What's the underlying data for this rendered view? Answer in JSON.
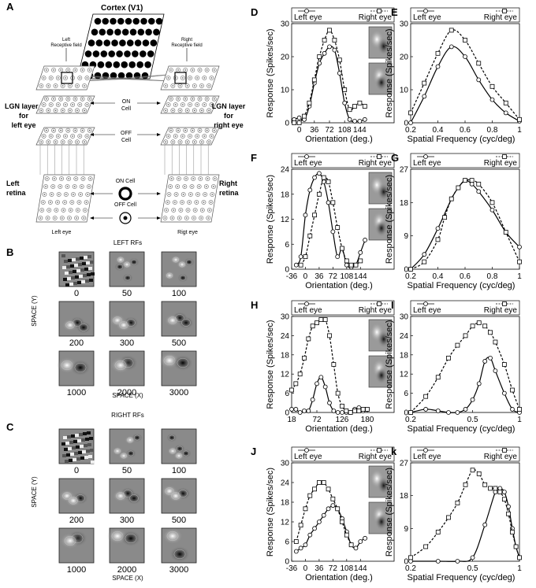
{
  "panel_a": {
    "letter": "A",
    "cortex_title": "Cortex (V1)",
    "left_rf_label": [
      "Left",
      "Receptive field"
    ],
    "right_rf_label": [
      "Right",
      "Receptive field"
    ],
    "lgn_left_label": [
      "LGN layer",
      "for",
      "left eye"
    ],
    "lgn_right_label": [
      "LGN layer",
      "for",
      "right eye"
    ],
    "on_cell": "ON",
    "on_cell_2": "Cell",
    "off_cell": "OFF",
    "off_cell_2": "Cell",
    "left_retina": [
      "Left",
      "retina"
    ],
    "right_retina": [
      "Right",
      "retina"
    ],
    "on_cell_legend": "ON Cell",
    "off_cell_legend": "OFF Cell",
    "left_eye": "Left eye",
    "right_eye": "Rigt eye"
  },
  "panel_b": {
    "letter": "B",
    "title": "LEFT RFs",
    "iterations": [
      "0",
      "50",
      "100",
      "200",
      "300",
      "500",
      "1000",
      "2000",
      "3000"
    ],
    "ylabel": "SPACE (Y)",
    "xlabel": "SPACE (X)"
  },
  "panel_c": {
    "letter": "C",
    "title": "RIGHT RFs",
    "iterations": [
      "0",
      "50",
      "100",
      "200",
      "300",
      "500",
      "1000",
      "2000",
      "3000"
    ],
    "ylabel": "SPACE (Y)",
    "xlabel": "SPACE (X)"
  },
  "legend": {
    "left": "Left eye",
    "right": "Right eye"
  },
  "chart_data": [
    {
      "id": "D",
      "type": "line",
      "xlabel": "Orientation (deg.)",
      "ylabel": "Response (Spikes/sec)",
      "xlim": [
        -18,
        162
      ],
      "ylim": [
        0,
        30
      ],
      "xticks": [
        0,
        36,
        72,
        108,
        144
      ],
      "yticks": [
        0,
        10,
        20,
        30
      ],
      "log_x": false,
      "thumbs": true,
      "series": [
        {
          "name": "Left eye",
          "marker": "circle",
          "dash": "solid",
          "x": [
            -12,
            0,
            12,
            24,
            36,
            48,
            60,
            72,
            84,
            96,
            108,
            120,
            132,
            144,
            156
          ],
          "y": [
            1,
            1.5,
            1,
            5,
            12,
            18,
            21,
            23,
            22,
            15,
            6,
            1,
            0.5,
            0.5,
            1
          ]
        },
        {
          "name": "Right eye",
          "marker": "square",
          "dash": "dashed",
          "x": [
            -12,
            0,
            12,
            24,
            36,
            48,
            60,
            72,
            84,
            96,
            108,
            120,
            132,
            144,
            156
          ],
          "y": [
            0,
            0,
            2,
            6,
            13,
            20,
            25,
            28,
            25,
            19,
            10,
            4,
            5,
            6,
            5
          ]
        }
      ]
    },
    {
      "id": "E",
      "type": "line",
      "xlabel": "Spatial Frequency (cyc/deg)",
      "ylabel": "Response (Spikes/sec)",
      "xlim": [
        0.2,
        1
      ],
      "ylim": [
        0,
        30
      ],
      "xticks": [
        0.2,
        0.4,
        0.6,
        0.8,
        1
      ],
      "yticks": [
        0,
        10,
        20,
        30
      ],
      "log_x": false,
      "thumbs": false,
      "series": [
        {
          "name": "Left eye",
          "marker": "circle",
          "dash": "solid",
          "x": [
            0.2,
            0.3,
            0.4,
            0.5,
            0.6,
            0.7,
            0.8,
            0.9,
            1.0
          ],
          "y": [
            0,
            8,
            17,
            23,
            20,
            13,
            7,
            3,
            0.5
          ]
        },
        {
          "name": "Right eye",
          "marker": "square",
          "dash": "dashed",
          "x": [
            0.2,
            0.3,
            0.4,
            0.5,
            0.6,
            0.7,
            0.8,
            0.9,
            1.0
          ],
          "y": [
            3,
            12,
            21,
            28,
            25,
            18,
            11,
            6,
            1
          ]
        }
      ]
    },
    {
      "id": "F",
      "type": "line",
      "xlabel": "Orientation (deg.)",
      "ylabel": "Response (Spikes/sec)",
      "xlim": [
        -36,
        162
      ],
      "ylim": [
        0,
        24
      ],
      "xticks": [
        -36,
        0,
        36,
        72,
        108,
        144
      ],
      "yticks": [
        0,
        6,
        12,
        18,
        24
      ],
      "log_x": false,
      "thumbs": true,
      "series": [
        {
          "name": "Left eye",
          "marker": "circle",
          "dash": "solid",
          "x": [
            -24,
            -12,
            0,
            12,
            24,
            36,
            48,
            60,
            72,
            84,
            96,
            108,
            120,
            132,
            144,
            156
          ],
          "y": [
            1,
            3,
            13,
            19,
            22,
            23,
            21,
            16,
            9,
            3,
            5,
            1,
            0.5,
            1,
            4,
            7
          ]
        },
        {
          "name": "Right eye",
          "marker": "square",
          "dash": "dashed",
          "x": [
            -12,
            0,
            12,
            24,
            36,
            48,
            60,
            72,
            84,
            96,
            108,
            120,
            132,
            144
          ],
          "y": [
            1,
            3,
            8,
            13,
            18,
            22,
            21,
            16,
            10,
            5,
            2,
            1,
            1,
            2
          ]
        }
      ]
    },
    {
      "id": "G",
      "type": "line",
      "xlabel": "Spatial Frequency (cyc/deg)",
      "ylabel": "Response (Spikes/sec)",
      "xlim": [
        0.2,
        1
      ],
      "ylim": [
        0,
        27
      ],
      "xticks": [
        0.2,
        0.4,
        0.6,
        0.8,
        1
      ],
      "yticks": [
        0,
        9,
        18,
        27
      ],
      "log_x": false,
      "thumbs": false,
      "series": [
        {
          "name": "Left eye",
          "marker": "circle",
          "dash": "solid",
          "x": [
            0.2,
            0.3,
            0.4,
            0.5,
            0.55,
            0.6,
            0.65,
            0.7,
            0.8,
            0.9,
            1.0
          ],
          "y": [
            0,
            4,
            11,
            19,
            22,
            24,
            23,
            21,
            16,
            10,
            6
          ]
        },
        {
          "name": "Right eye",
          "marker": "square",
          "dash": "dashed",
          "x": [
            0.2,
            0.3,
            0.4,
            0.45,
            0.5,
            0.55,
            0.6,
            0.65,
            0.7,
            0.8,
            0.9,
            1.0
          ],
          "y": [
            0,
            2,
            8,
            14,
            19,
            22,
            24,
            24,
            23,
            18,
            10,
            2
          ]
        }
      ]
    },
    {
      "id": "H",
      "type": "line",
      "xlabel": "Orientation (deg.)",
      "ylabel": "Response (Spikes/sec)",
      "xlim": [
        18,
        180
      ],
      "ylim": [
        0,
        30
      ],
      "xticks": [
        18,
        72,
        126,
        180
      ],
      "yticks": [
        0,
        6,
        12,
        18,
        24,
        30
      ],
      "log_x": false,
      "thumbs": true,
      "series": [
        {
          "name": "Left eye",
          "marker": "circle",
          "dash": "solid",
          "x": [
            18,
            27,
            36,
            45,
            54,
            63,
            72,
            81,
            90,
            99,
            108,
            117,
            126,
            135,
            144,
            153,
            162,
            171,
            180
          ],
          "y": [
            1,
            1,
            0,
            0.5,
            0.5,
            4,
            9,
            11,
            8,
            3,
            0.5,
            0,
            0,
            0,
            0,
            1,
            1.5,
            0.5,
            1
          ]
        },
        {
          "name": "Right eye",
          "marker": "square",
          "dash": "dashed",
          "x": [
            18,
            27,
            36,
            45,
            54,
            63,
            72,
            81,
            90,
            99,
            108,
            117,
            126,
            135,
            144,
            153,
            162,
            171,
            180
          ],
          "y": [
            7,
            9,
            12,
            17,
            23,
            27,
            28,
            29,
            29,
            24,
            15,
            6,
            2,
            0.5,
            0,
            0.5,
            0.5,
            1,
            1
          ]
        }
      ]
    },
    {
      "id": "I",
      "type": "line",
      "xlabel": "Spatial Frequency (cyc/deg)",
      "ylabel": "Response (Spikes/sec)",
      "xlim": [
        0.2,
        1
      ],
      "ylim": [
        0,
        30
      ],
      "xticks": [
        0.2,
        0.5,
        1
      ],
      "yticks": [
        0,
        6,
        12,
        18,
        24,
        30
      ],
      "log_x": true,
      "thumbs": false,
      "series": [
        {
          "name": "Left eye",
          "marker": "circle",
          "dash": "solid",
          "x": [
            0.2,
            0.25,
            0.3,
            0.35,
            0.4,
            0.45,
            0.5,
            0.55,
            0.6,
            0.65,
            0.7,
            0.8,
            0.9,
            1.0
          ],
          "y": [
            0,
            1,
            0.5,
            0,
            0,
            1,
            4,
            9,
            16,
            17,
            13,
            6,
            1,
            0
          ]
        },
        {
          "name": "Right eye",
          "marker": "square",
          "dash": "dashed",
          "x": [
            0.2,
            0.25,
            0.3,
            0.35,
            0.4,
            0.45,
            0.5,
            0.55,
            0.6,
            0.65,
            0.7,
            0.8,
            0.9,
            1.0
          ],
          "y": [
            0,
            5,
            11,
            17,
            21,
            24,
            27,
            28,
            27,
            25,
            22,
            15,
            7,
            1
          ]
        }
      ]
    },
    {
      "id": "J",
      "type": "line",
      "xlabel": "Orientation (deg.)",
      "ylabel": "Response (Spikes/sec)",
      "xlim": [
        -36,
        162
      ],
      "ylim": [
        0,
        30
      ],
      "xticks": [
        -36,
        0,
        36,
        72,
        108,
        144
      ],
      "yticks": [
        0,
        6,
        12,
        18,
        24,
        30
      ],
      "log_x": false,
      "thumbs": true,
      "series": [
        {
          "name": "Left eye",
          "marker": "circle",
          "dash": "solid",
          "x": [
            -24,
            -12,
            0,
            12,
            24,
            36,
            48,
            60,
            72,
            84,
            96,
            108,
            120,
            132,
            144,
            156
          ],
          "y": [
            3,
            4,
            5,
            8,
            10,
            12,
            14,
            16,
            17,
            16,
            13,
            9,
            5,
            4,
            6,
            7
          ]
        },
        {
          "name": "Right eye",
          "marker": "square",
          "dash": "dashed",
          "x": [
            -24,
            -12,
            0,
            12,
            24,
            36,
            48,
            60,
            72,
            84,
            96,
            108,
            120
          ],
          "y": [
            6,
            11,
            16,
            20,
            22,
            24,
            24,
            22,
            19,
            16,
            12,
            8,
            5
          ]
        }
      ]
    },
    {
      "id": "k",
      "type": "line",
      "xlabel": "Spatial Frequency (cyc/deg)",
      "ylabel": "Response (Spikes/sec)",
      "xlim": [
        0.2,
        1
      ],
      "ylim": [
        0,
        27
      ],
      "xticks": [
        0.2,
        0.5,
        1
      ],
      "yticks": [
        0,
        9,
        18,
        27
      ],
      "log_x": true,
      "thumbs": false,
      "series": [
        {
          "name": "Left eye",
          "marker": "circle",
          "dash": "solid",
          "x": [
            0.2,
            0.3,
            0.4,
            0.5,
            0.6,
            0.7,
            0.75,
            0.8,
            0.85,
            0.9,
            0.95,
            1.0
          ],
          "y": [
            0,
            0,
            0,
            1,
            10,
            19,
            20,
            19,
            15,
            9,
            4,
            1
          ]
        },
        {
          "name": "Right eye",
          "marker": "square",
          "dash": "dashed",
          "x": [
            0.2,
            0.25,
            0.3,
            0.35,
            0.4,
            0.45,
            0.5,
            0.55,
            0.6,
            0.65,
            0.7,
            0.75,
            0.8,
            0.85,
            0.9,
            0.95,
            1.0
          ],
          "y": [
            1,
            4,
            8,
            12,
            16,
            21,
            25,
            24,
            21,
            20,
            20,
            19,
            17,
            13,
            8,
            4,
            1
          ]
        }
      ]
    }
  ]
}
